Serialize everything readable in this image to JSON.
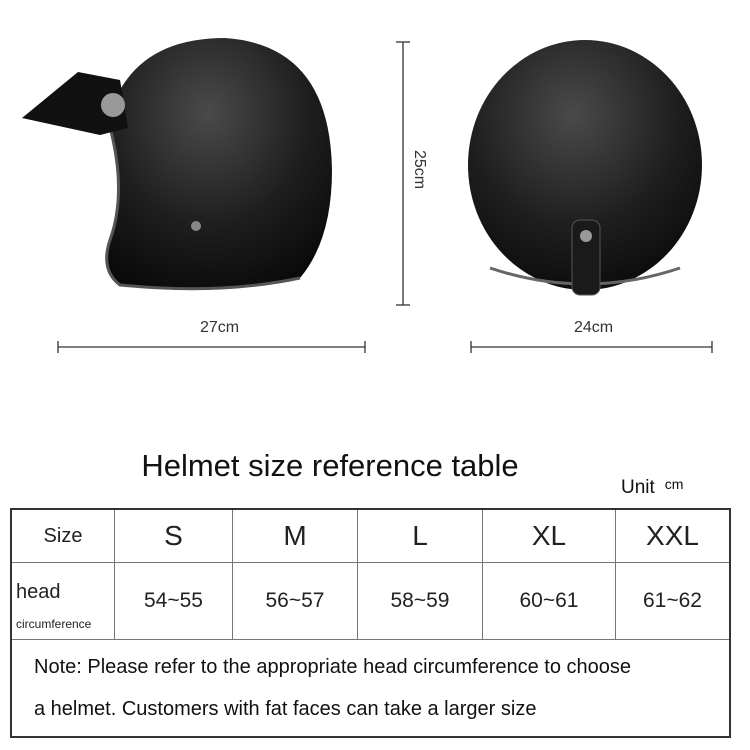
{
  "dimensions": {
    "depth": "27cm",
    "height": "25cm",
    "width": "24cm"
  },
  "table": {
    "title": "Helmet size reference table",
    "unit_label": "Unit",
    "unit": "cm",
    "header": [
      "Size",
      "S",
      "M",
      "L",
      "XL",
      "XXL"
    ],
    "row_label_main": "head",
    "row_label_sub": "circumference",
    "values": [
      "54~55",
      "56~57",
      "58~59",
      "60~61",
      "61~62"
    ],
    "note_line1": "Note: Please refer to the appropriate head circumference to choose",
    "note_line2": "a helmet. Customers with fat faces can take a larger size"
  }
}
